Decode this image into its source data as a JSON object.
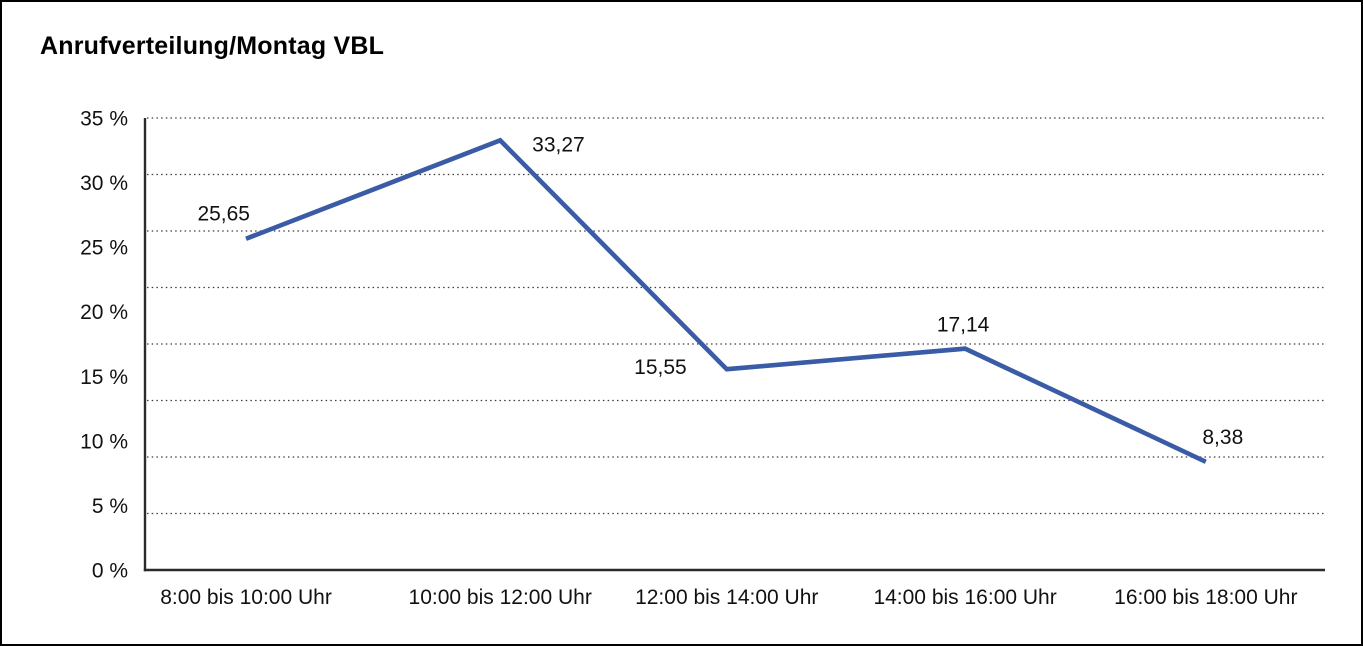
{
  "window": {
    "background": "#ffffff",
    "frame_border_color": "#000000"
  },
  "chart_data": {
    "type": "line",
    "title": "Anrufverteilung/Montag VBL",
    "categories": [
      "8:00 bis 10:00 Uhr",
      "10:00 bis 12:00 Uhr",
      "12:00 bis 14:00 Uhr",
      "14:00 bis 16:00 Uhr",
      "16:00 bis 18:00 Uhr"
    ],
    "series": [
      {
        "name": "Anrufverteilung Montag VBL",
        "values": [
          25.65,
          33.27,
          15.55,
          17.14,
          8.38
        ],
        "point_labels": [
          "25,65",
          "33,27",
          "15,55",
          "17,14",
          "8,38"
        ]
      }
    ],
    "xlabel": "",
    "ylabel": "",
    "ylim": [
      0,
      35
    ],
    "y_tick_labels": [
      "35 %",
      "30 %",
      "25 %",
      "20 %",
      "15 %",
      "10 %",
      "5 %",
      "0 %"
    ],
    "grid": "horizontal dotted, 9 equally spaced lines (8 intervals), bottom line is solid x-axis",
    "legend": "none",
    "colors": {
      "line": "#3a5ba5",
      "axis": "#2b2b2b",
      "gridline": "#3c3c3c",
      "text": "#111111"
    }
  }
}
